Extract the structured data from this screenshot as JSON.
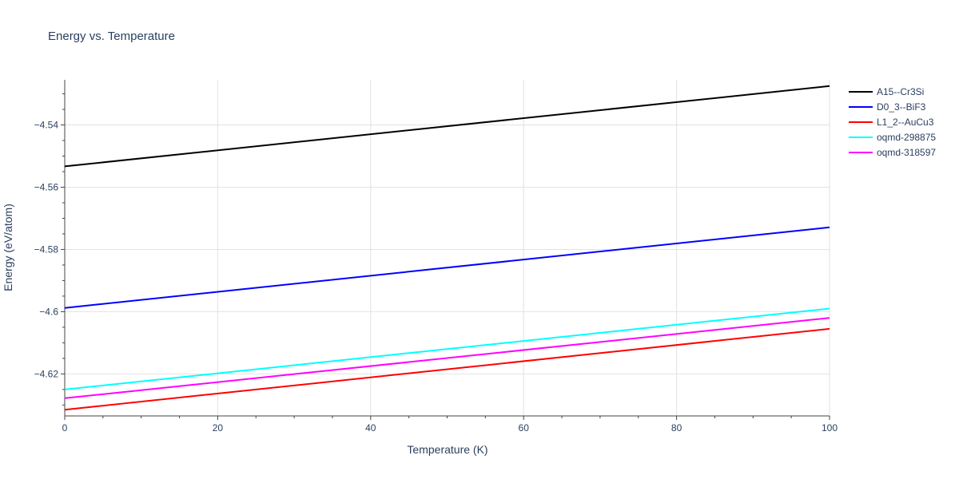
{
  "chart_data": {
    "type": "line",
    "title": "Energy vs. Temperature",
    "xlabel": "Temperature (K)",
    "ylabel": "Energy (eV/atom)",
    "xlim": [
      0,
      100
    ],
    "ylim": [
      -4.6335,
      -4.5255
    ],
    "x_ticks": [
      0,
      20,
      40,
      60,
      80,
      100
    ],
    "x_tick_labels": [
      "0",
      "20",
      "40",
      "60",
      "80",
      "100"
    ],
    "y_ticks": [
      -4.54,
      -4.56,
      -4.58,
      -4.6,
      -4.62
    ],
    "y_tick_labels": [
      "−4.54",
      "−4.56",
      "−4.58",
      "−4.6",
      "−4.62"
    ],
    "x_minor_step": 5,
    "y_minor_step": 0.005,
    "grid": true,
    "legend_position": "right",
    "series": [
      {
        "name": "A15--Cr3Si",
        "color": "#000000",
        "x": [
          0,
          100
        ],
        "y": [
          -4.5533,
          -4.5275
        ]
      },
      {
        "name": "D0_3--BiF3",
        "color": "#0000ff",
        "x": [
          0,
          100
        ],
        "y": [
          -4.5988,
          -4.5729
        ]
      },
      {
        "name": "L1_2--AuCu3",
        "color": "#ff0000",
        "x": [
          0,
          100
        ],
        "y": [
          -4.6315,
          -4.6055
        ]
      },
      {
        "name": "oqmd-298875",
        "color": "#00ffff",
        "x": [
          0,
          100
        ],
        "y": [
          -4.625,
          -4.599
        ]
      },
      {
        "name": "oqmd-318597",
        "color": "#ff00ff",
        "x": [
          0,
          100
        ],
        "y": [
          -4.6278,
          -4.602
        ]
      }
    ]
  }
}
